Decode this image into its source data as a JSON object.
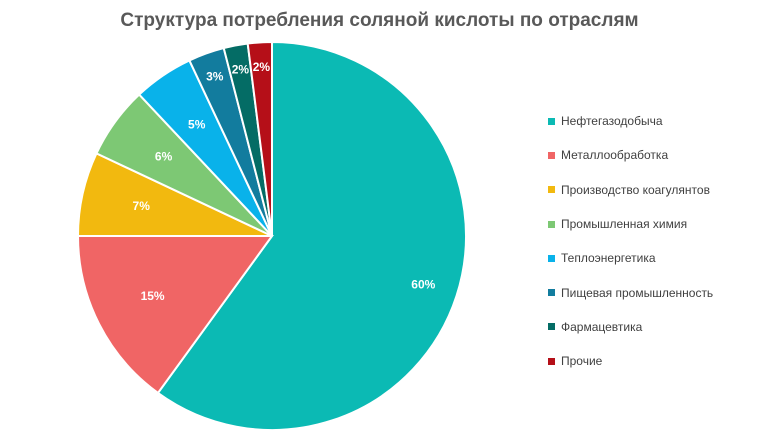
{
  "chart_data": {
    "type": "pie",
    "title": "Структура потребления соляной кислоты по отраслям",
    "legend_position": "right",
    "slices": [
      {
        "label": "Нефтегазодобыча",
        "value": 60,
        "display": "60%",
        "color": "#0bbab4"
      },
      {
        "label": "Металлообработка",
        "value": 15,
        "display": "15%",
        "color": "#f06565"
      },
      {
        "label": "Производство коагулянтов",
        "value": 7,
        "display": "7%",
        "color": "#f2b90f"
      },
      {
        "label": "Промышленная химия",
        "value": 6,
        "display": "6%",
        "color": "#7dc874"
      },
      {
        "label": "Теплоэнергетика",
        "value": 5,
        "display": "5%",
        "color": "#09b2ea"
      },
      {
        "label": "Пищевая промышленность",
        "value": 3,
        "display": "3%",
        "color": "#127c9e"
      },
      {
        "label": "Фармацевтика",
        "value": 2,
        "display": "2%",
        "color": "#046c65"
      },
      {
        "label": "Прочие",
        "value": 2,
        "display": "2%",
        "color": "#b50f18"
      }
    ]
  }
}
